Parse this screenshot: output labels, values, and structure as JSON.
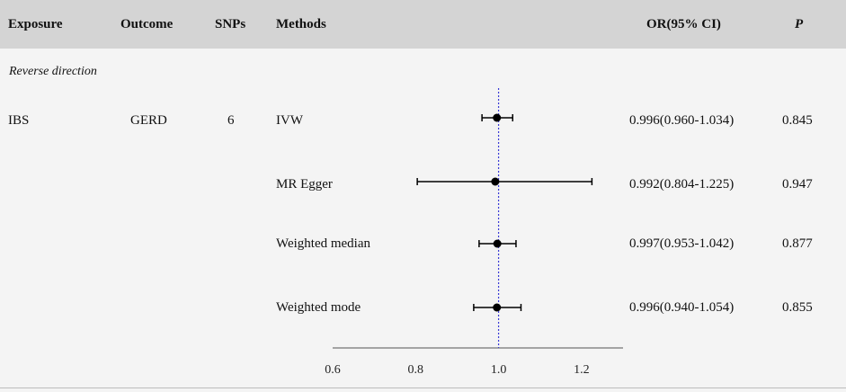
{
  "header": {
    "exposure": "Exposure",
    "outcome": "Outcome",
    "snps": "SNPs",
    "methods": "Methods",
    "or_ci": "OR(95% CI)",
    "p": "P"
  },
  "section_label": "Reverse direction",
  "group": {
    "exposure": "IBS",
    "outcome": "GERD",
    "snps": "6"
  },
  "rows": [
    {
      "method": "IVW",
      "or_text": "0.996(0.960-1.034)",
      "p": "0.845"
    },
    {
      "method": "MR Egger",
      "or_text": "0.992(0.804-1.225)",
      "p": "0.947"
    },
    {
      "method": "Weighted  median",
      "or_text": "0.997(0.953-1.042)",
      "p": "0.877"
    },
    {
      "method": "Weighted  mode",
      "or_text": "0.996(0.940-1.054)",
      "p": "0.855"
    }
  ],
  "chart_data": {
    "type": "scatter",
    "x": [
      0.996,
      0.992,
      0.997,
      0.996
    ],
    "ci_low": [
      0.96,
      0.804,
      0.953,
      0.94
    ],
    "ci_high": [
      1.034,
      1.225,
      1.042,
      1.054
    ],
    "categories": [
      "IVW",
      "MR Egger",
      "Weighted  median",
      "Weighted  mode"
    ],
    "xlim": [
      0.6,
      1.3
    ],
    "x_ticks": [
      "0.6",
      "0.8",
      "1.0",
      "1.2"
    ],
    "x_tick_values": [
      0.6,
      0.8,
      1.0,
      1.2
    ],
    "reference_line": 1.0,
    "colors": {
      "points": "#000000",
      "reference": "#3b3bd6",
      "axis": "#555555"
    },
    "title": "",
    "xlabel": "",
    "ylabel": ""
  }
}
